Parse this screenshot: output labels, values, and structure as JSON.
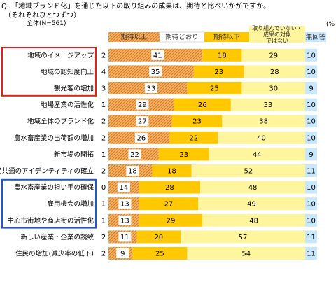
{
  "header": {
    "question": "Q. 「地域ブランド化」を通じた以下の取り組みの成果は、期待と比べいかがですか。",
    "sub": "（それぞれひとつずつ）",
    "base": "全体(N=561)",
    "unit": "(%"
  },
  "colors": {
    "above": "#f0a040",
    "as_expected": "#ffffff",
    "below": "#ffc800",
    "not_target": "#fff59d",
    "no_answer": "#c8e8ff",
    "blank_label_bg": "#ffffff",
    "red_box": "#e02020",
    "blue_box": "#2255cc"
  },
  "chart_data": {
    "type": "bar",
    "stacked": true,
    "orientation": "horizontal",
    "legend": [
      "期待以上",
      "期待どおり",
      "期待以下",
      "取り組んでいない・成果の対象ではない",
      "無回答"
    ],
    "legend_display": [
      "期待以上",
      "期待どおり",
      "期待以下",
      "取り組んでいない・\n成果の対象\nではない",
      "無回答"
    ],
    "categories": [
      "地域のイメージアップ",
      "地域の認知度向上",
      "観光客の増加",
      "地場産業の活性化",
      "地域全体のブランド化",
      "農水畜産業の出荷額の増加",
      "新市場の開拓",
      "住民共通のアイデンティティの確立",
      "農水畜産業の担い手の確保",
      "雇用機会の増加",
      "中心市街地や商店街の活性化",
      "新しい産業・企業の誘致",
      "住民の増加(減少率の低下)"
    ],
    "series": [
      {
        "name": "期待以上",
        "values": [
          2,
          4,
          3,
          1,
          2,
          2,
          1,
          2,
          0,
          1,
          1,
          2,
          2
        ]
      },
      {
        "name": "期待どおり",
        "values": [
          41,
          35,
          33,
          29,
          27,
          26,
          22,
          18,
          14,
          13,
          13,
          11,
          9
        ]
      },
      {
        "name": "期待以下",
        "values": [
          18,
          23,
          25,
          26,
          23,
          22,
          23,
          18,
          28,
          27,
          29,
          20,
          25
        ]
      },
      {
        "name": "取り組んでいない・成果の対象ではない",
        "values": [
          29,
          28,
          30,
          33,
          38,
          40,
          44,
          52,
          48,
          49,
          48,
          57,
          54
        ]
      },
      {
        "name": "無回答",
        "values": [
          10,
          10,
          9,
          10,
          10,
          10,
          9,
          11,
          10,
          10,
          10,
          11,
          11
        ]
      }
    ],
    "highlight_groups": [
      {
        "color": "red",
        "rows": [
          0,
          1,
          2
        ]
      },
      {
        "color": "blue",
        "rows": [
          8,
          9,
          10
        ]
      }
    ]
  }
}
